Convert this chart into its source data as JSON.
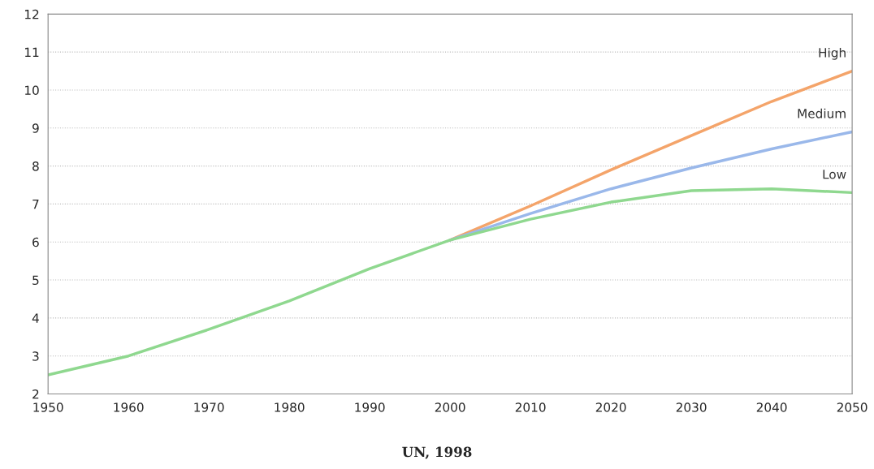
{
  "chart_data": {
    "type": "line",
    "xlim": [
      1950,
      2050
    ],
    "xticks": [
      1950,
      1960,
      1970,
      1980,
      1990,
      2000,
      2010,
      2020,
      2030,
      2040,
      2050
    ],
    "ylim": [
      2,
      12
    ],
    "yticks": [
      2,
      3,
      4,
      5,
      6,
      7,
      8,
      9,
      10,
      11,
      12
    ],
    "grid": "y",
    "legend": false,
    "marker": "none",
    "line_style": "solid",
    "series": [
      {
        "name": "High",
        "color": "#f4a46a",
        "x": [
          2000,
          2010,
          2020,
          2030,
          2040,
          2050
        ],
        "values": [
          6.05,
          6.95,
          7.9,
          8.8,
          9.7,
          10.5
        ]
      },
      {
        "name": "Medium",
        "color": "#9ab8ea",
        "x": [
          2000,
          2010,
          2020,
          2030,
          2040,
          2050
        ],
        "values": [
          6.05,
          6.75,
          7.4,
          7.95,
          8.45,
          8.9
        ]
      },
      {
        "name": "Low",
        "color": "#8fd88f",
        "x": [
          1950,
          1960,
          1970,
          1980,
          1990,
          2000,
          2010,
          2020,
          2030,
          2040,
          2050
        ],
        "values": [
          2.5,
          3.0,
          3.7,
          4.45,
          5.3,
          6.05,
          6.6,
          7.05,
          7.35,
          7.4,
          7.3
        ]
      }
    ],
    "annotations": [
      "UN, 1998"
    ]
  }
}
